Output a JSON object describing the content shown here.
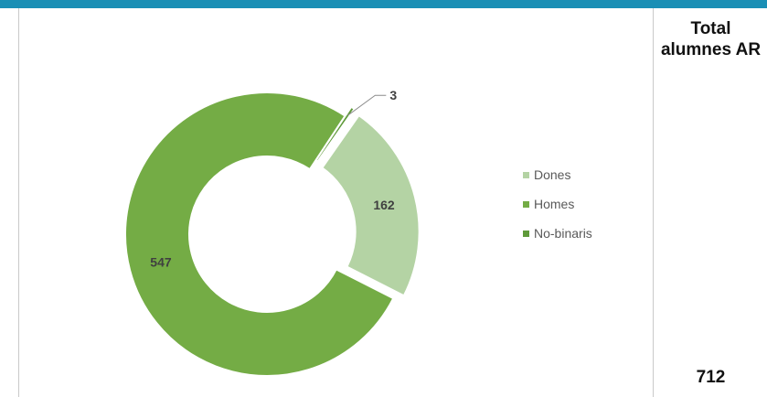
{
  "header": {
    "accent_color": "#1a8fb5"
  },
  "total_panel": {
    "title": "Total alumnes AR",
    "value": "712"
  },
  "chart_data": {
    "type": "donut",
    "categories": [
      "Dones",
      "Homes",
      "No-binaris"
    ],
    "values": [
      162,
      547,
      3
    ],
    "colors": [
      "#b4d3a4",
      "#74ac45",
      "#5f9a3a"
    ],
    "data_labels": [
      "162",
      "547",
      "3"
    ],
    "legend_position": "right",
    "total": 712
  }
}
